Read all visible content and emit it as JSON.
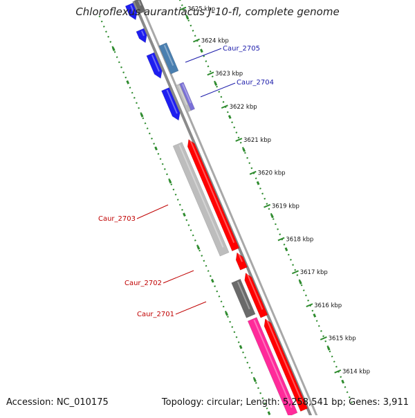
{
  "title": "Chloroflexus aurantiacus J-10-fl, complete genome",
  "footer": {
    "accession": "Accession: NC_010175",
    "summary": "Topology: circular; Length: 5,258,541 bp; Genes: 3,911"
  },
  "colors": {
    "background": "#ffffff",
    "backbone": "#8a8a8a",
    "tick": "#2e8b2e",
    "forward_gene": "#1e1ef0",
    "forward_gene_alt": "#4a7fb0",
    "reverse_gene": "#ff0000",
    "reverse_gene_alt": "#ff2a9a",
    "other_gene": "#bdbdbd",
    "dark_gene": "#6a6a6a",
    "label_blue": "#1a1aaa",
    "label_red": "#c00000"
  },
  "axis_labels": [
    "3625 kbp",
    "3624 kbp",
    "3623 kbp",
    "3622 kbp",
    "3621 kbp",
    "3620 kbp",
    "3619 kbp",
    "3618 kbp",
    "3617 kbp",
    "3616 kbp",
    "3615 kbp",
    "3614 kbp"
  ],
  "gene_labels": [
    {
      "text": "Caur_2705",
      "strand": "forward"
    },
    {
      "text": "Caur_2704",
      "strand": "forward"
    },
    {
      "text": "Caur_2703",
      "strand": "reverse"
    },
    {
      "text": "Caur_2702",
      "strand": "reverse"
    },
    {
      "text": "Caur_2701",
      "strand": "reverse"
    }
  ]
}
